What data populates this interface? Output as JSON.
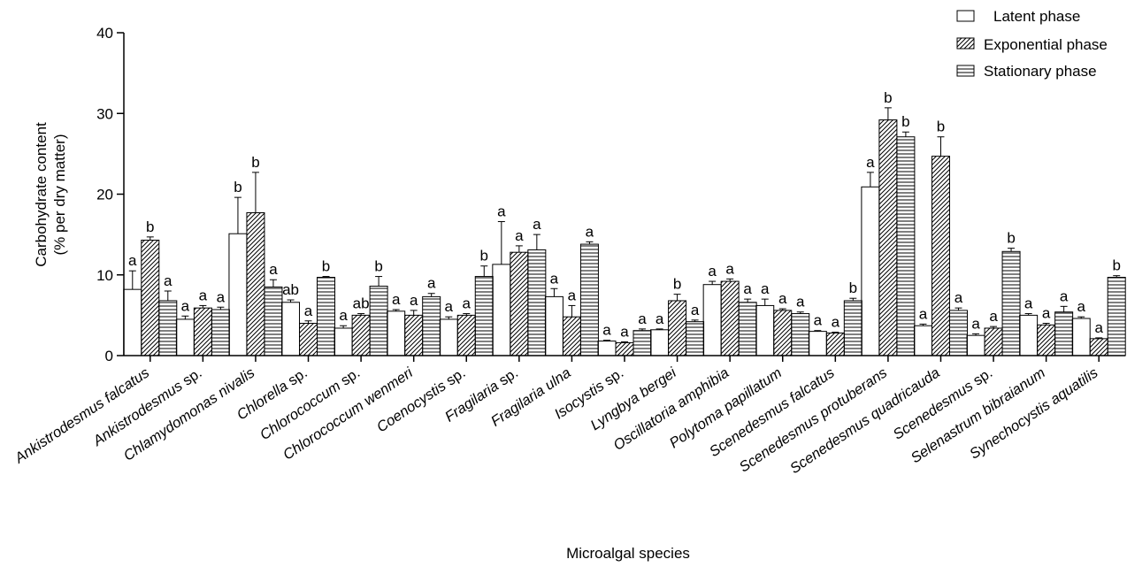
{
  "chart_data": {
    "type": "bar",
    "xlabel": "Microalgal species",
    "ylabel": [
      "Carbohydrate content",
      "(% per dry matter)"
    ],
    "ylim": [
      0,
      40
    ],
    "yticks": [
      "0",
      "10",
      "20",
      "30",
      "40"
    ],
    "grid": false,
    "legend_position": "top-right",
    "categories": [
      {
        "italic": "Ankistrodesmus falcatus",
        "suffix": ""
      },
      {
        "italic": "Ankistrodesmus",
        "suffix": " sp."
      },
      {
        "italic": "Chlamydomonas nivalis",
        "suffix": ""
      },
      {
        "italic": "Chlorella",
        "suffix": " sp."
      },
      {
        "italic": "Chlorococcum",
        "suffix": " sp."
      },
      {
        "italic": "Chlorococcum wenmeri",
        "suffix": ""
      },
      {
        "italic": "Coenocystis",
        "suffix": " sp."
      },
      {
        "italic": "Fragilaria",
        "suffix": " sp."
      },
      {
        "italic": "Fragilaria ulna",
        "suffix": ""
      },
      {
        "italic": "Isocystis",
        "suffix": " sp."
      },
      {
        "italic": "Lyngbya bergei",
        "suffix": ""
      },
      {
        "italic": "Oscillatoria amphibia",
        "suffix": ""
      },
      {
        "italic": "Polytoma papillatum",
        "suffix": ""
      },
      {
        "italic": "Scenedesmus falcatus",
        "suffix": ""
      },
      {
        "italic": "Scenedesmus protuberans",
        "suffix": ""
      },
      {
        "italic": "Scenedesmus quadricauda",
        "suffix": ""
      },
      {
        "italic": "Scenedesmus",
        "suffix": " sp."
      },
      {
        "italic": "Selenastrum bibraianum",
        "suffix": ""
      },
      {
        "italic": "Synechocystis aquatilis",
        "suffix": ""
      }
    ],
    "series": [
      {
        "name": "Latent phase",
        "pattern": "open",
        "values": [
          8.2,
          4.5,
          15.1,
          6.6,
          3.4,
          5.5,
          4.5,
          11.3,
          7.3,
          1.8,
          3.2,
          8.8,
          6.2,
          3.0,
          20.9,
          3.7,
          2.5,
          5.0,
          4.6
        ],
        "errors": [
          2.3,
          0.4,
          4.5,
          0.3,
          0.3,
          0.2,
          0.3,
          5.3,
          1.0,
          0.1,
          0.1,
          0.4,
          0.8,
          0.1,
          1.8,
          0.2,
          0.2,
          0.2,
          0.2
        ],
        "letters": [
          "a",
          "a",
          "b",
          "ab",
          "a",
          "a",
          "a",
          "a",
          "a",
          "a",
          "a",
          "a",
          "a",
          "a",
          "a",
          "a",
          "a",
          "a",
          "a"
        ]
      },
      {
        "name": "Exponential phase",
        "pattern": "diagonal",
        "values": [
          14.3,
          5.9,
          17.7,
          4.0,
          5.0,
          5.0,
          5.0,
          12.8,
          4.8,
          1.6,
          6.8,
          9.2,
          5.6,
          2.8,
          29.2,
          24.7,
          3.4,
          3.8,
          2.1
        ],
        "errors": [
          0.4,
          0.3,
          5.0,
          0.3,
          0.2,
          0.6,
          0.2,
          0.8,
          1.4,
          0.1,
          0.8,
          0.3,
          0.2,
          0.1,
          1.5,
          2.4,
          0.2,
          0.2,
          0.1
        ],
        "letters": [
          "b",
          "a",
          "b",
          "a",
          "ab",
          "a",
          "a",
          "a",
          "a",
          "a",
          "b",
          "a",
          "a",
          "a",
          "b",
          "b",
          "a",
          "a",
          "a"
        ]
      },
      {
        "name": "Stationary phase",
        "pattern": "horizontal",
        "values": [
          6.8,
          5.7,
          8.5,
          9.7,
          8.6,
          7.3,
          9.8,
          13.1,
          13.8,
          3.1,
          4.2,
          6.6,
          5.2,
          6.8,
          27.1,
          5.6,
          12.9,
          5.4,
          9.7
        ],
        "errors": [
          1.2,
          0.3,
          0.9,
          0.1,
          1.2,
          0.4,
          1.3,
          1.9,
          0.3,
          0.2,
          0.2,
          0.4,
          0.2,
          0.3,
          0.6,
          0.3,
          0.4,
          0.7,
          0.2
        ],
        "letters": [
          "a",
          "a",
          "a",
          "b",
          "b",
          "a",
          "b",
          "a",
          "a",
          "a",
          "a",
          "a",
          "a",
          "b",
          "b",
          "a",
          "b",
          "a",
          "b"
        ]
      }
    ]
  }
}
